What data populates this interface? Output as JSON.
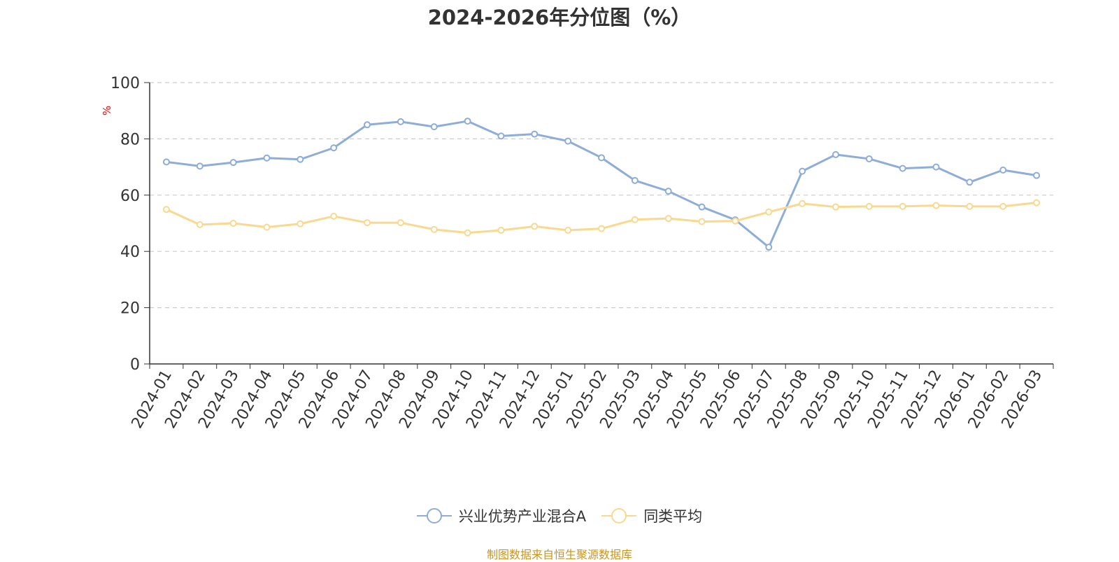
{
  "chart_data": {
    "type": "line",
    "title": "2024-2026年分位图（%）",
    "ylabel": "%",
    "xlabel": "",
    "ylim": [
      0,
      100
    ],
    "yticks": [
      0,
      20,
      40,
      60,
      80,
      100
    ],
    "grid": "horizontal dashed",
    "legend_position": "bottom",
    "categories": [
      "2024-01",
      "2024-02",
      "2024-03",
      "2024-04",
      "2024-05",
      "2024-06",
      "2024-07",
      "2024-08",
      "2024-09",
      "2024-10",
      "2024-11",
      "2024-12",
      "2025-01",
      "2025-02",
      "2025-03",
      "2025-04",
      "2025-05",
      "2025-06",
      "2025-07",
      "2025-08",
      "2025-09",
      "2025-10",
      "2025-11",
      "2025-12",
      "2026-01",
      "2026-02",
      "2026-03"
    ],
    "series": [
      {
        "name": "兴业优势产业混合A",
        "color": "#8eadd8",
        "values": [
          71.8,
          70.3,
          71.6,
          73.2,
          72.7,
          76.8,
          85.0,
          86.1,
          84.3,
          86.3,
          81.0,
          81.7,
          79.2,
          73.3,
          65.2,
          61.4,
          55.8,
          51.2,
          41.5,
          68.5,
          74.4,
          72.9,
          69.5,
          70.0,
          64.6,
          68.9,
          67.0
        ]
      },
      {
        "name": "同类平均",
        "color": "#f9d98f",
        "values": [
          54.9,
          49.5,
          50.0,
          48.6,
          49.8,
          52.5,
          50.2,
          50.2,
          47.8,
          46.6,
          47.5,
          48.9,
          47.5,
          48.1,
          51.3,
          51.7,
          50.6,
          50.8,
          54.0,
          57.0,
          55.8,
          56.0,
          56.0,
          56.3,
          56.0,
          56.0,
          57.3
        ]
      }
    ]
  },
  "source": "制图数据来自恒生聚源数据库"
}
